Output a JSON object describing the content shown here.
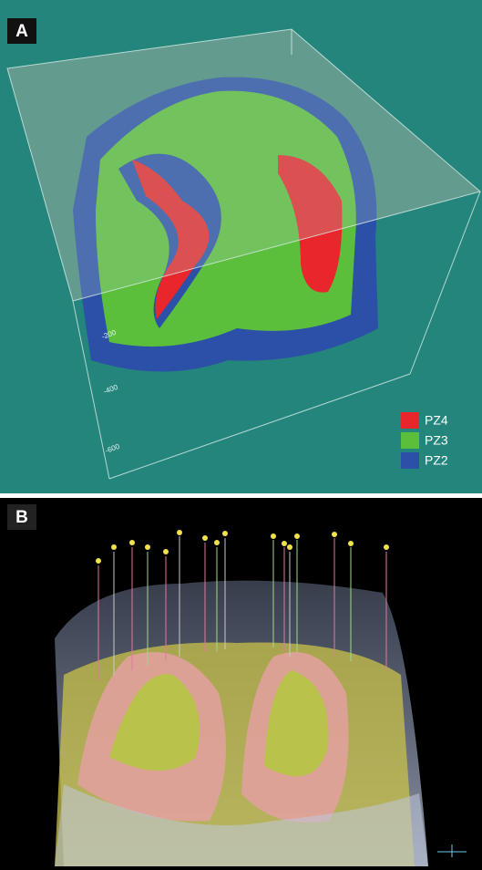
{
  "panels": [
    {
      "label": "A",
      "legend": [
        {
          "name": "PZ4",
          "color": "#e8262b"
        },
        {
          "name": "PZ3",
          "color": "#5cbf3c"
        },
        {
          "name": "PZ2",
          "color": "#2c4fa8"
        }
      ],
      "axis_labels": [
        "-200",
        "-400",
        "-600"
      ]
    },
    {
      "label": "B"
    }
  ]
}
